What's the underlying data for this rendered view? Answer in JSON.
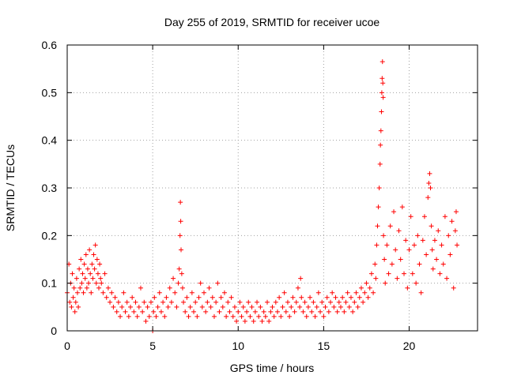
{
  "chart_data": {
    "type": "scatter",
    "title": "Day 255 of 2019, SRMTID for receiver ucoe",
    "xlabel": "GPS time / hours",
    "ylabel": "SRMTID / TECUs",
    "xlim": [
      0,
      24
    ],
    "ylim": [
      0,
      0.6
    ],
    "xticks": [
      0,
      5,
      10,
      15,
      20
    ],
    "yticks": [
      0,
      0.1,
      0.2,
      0.3,
      0.4,
      0.5,
      0.6
    ],
    "xtick_labels": [
      "0",
      "5",
      "10",
      "15",
      "20"
    ],
    "ytick_labels": [
      "0",
      "0.1",
      "0.2",
      "0.3",
      "0.4",
      "0.5",
      "0.6"
    ],
    "grid": true,
    "marker": "+",
    "color": "#ff0000",
    "series": [
      {
        "name": "SRMTID",
        "points": [
          [
            0.0,
            0.08
          ],
          [
            0.1,
            0.14
          ],
          [
            0.15,
            0.06
          ],
          [
            0.2,
            0.1
          ],
          [
            0.25,
            0.05
          ],
          [
            0.3,
            0.12
          ],
          [
            0.35,
            0.07
          ],
          [
            0.4,
            0.09
          ],
          [
            0.45,
            0.04
          ],
          [
            0.5,
            0.06
          ],
          [
            0.55,
            0.11
          ],
          [
            0.6,
            0.08
          ],
          [
            0.65,
            0.05
          ],
          [
            0.7,
            0.13
          ],
          [
            0.75,
            0.09
          ],
          [
            0.8,
            0.15
          ],
          [
            0.85,
            0.1
          ],
          [
            0.9,
            0.12
          ],
          [
            0.95,
            0.08
          ],
          [
            1.0,
            0.14
          ],
          [
            1.05,
            0.11
          ],
          [
            1.1,
            0.16
          ],
          [
            1.15,
            0.09
          ],
          [
            1.2,
            0.13
          ],
          [
            1.25,
            0.1
          ],
          [
            1.3,
            0.17
          ],
          [
            1.35,
            0.12
          ],
          [
            1.4,
            0.08
          ],
          [
            1.45,
            0.14
          ],
          [
            1.5,
            0.11
          ],
          [
            1.55,
            0.16
          ],
          [
            1.6,
            0.13
          ],
          [
            1.65,
            0.18
          ],
          [
            1.7,
            0.1
          ],
          [
            1.75,
            0.15
          ],
          [
            1.8,
            0.12
          ],
          [
            1.85,
            0.09
          ],
          [
            1.9,
            0.14
          ],
          [
            1.95,
            0.11
          ],
          [
            2.0,
            0.1
          ],
          [
            2.1,
            0.08
          ],
          [
            2.2,
            0.12
          ],
          [
            2.3,
            0.07
          ],
          [
            2.4,
            0.09
          ],
          [
            2.5,
            0.06
          ],
          [
            2.6,
            0.08
          ],
          [
            2.7,
            0.05
          ],
          [
            2.8,
            0.07
          ],
          [
            2.9,
            0.04
          ],
          [
            3.0,
            0.06
          ],
          [
            3.1,
            0.03
          ],
          [
            3.2,
            0.05
          ],
          [
            3.3,
            0.08
          ],
          [
            3.4,
            0.04
          ],
          [
            3.5,
            0.06
          ],
          [
            3.6,
            0.03
          ],
          [
            3.7,
            0.05
          ],
          [
            3.8,
            0.07
          ],
          [
            3.9,
            0.04
          ],
          [
            4.0,
            0.06
          ],
          [
            4.1,
            0.03
          ],
          [
            4.2,
            0.05
          ],
          [
            4.3,
            0.09
          ],
          [
            4.4,
            0.04
          ],
          [
            4.5,
            0.06
          ],
          [
            4.6,
            0.02
          ],
          [
            4.7,
            0.05
          ],
          [
            4.8,
            0.03
          ],
          [
            4.9,
            0.06
          ],
          [
            5.0,
            0.0
          ],
          [
            5.05,
            0.04
          ],
          [
            5.1,
            0.07
          ],
          [
            5.2,
            0.03
          ],
          [
            5.3,
            0.05
          ],
          [
            5.4,
            0.08
          ],
          [
            5.5,
            0.04
          ],
          [
            5.6,
            0.06
          ],
          [
            5.7,
            0.03
          ],
          [
            5.8,
            0.07
          ],
          [
            5.9,
            0.05
          ],
          [
            6.0,
            0.09
          ],
          [
            6.1,
            0.06
          ],
          [
            6.2,
            0.11
          ],
          [
            6.3,
            0.08
          ],
          [
            6.4,
            0.05
          ],
          [
            6.5,
            0.1
          ],
          [
            6.55,
            0.13
          ],
          [
            6.6,
            0.2
          ],
          [
            6.62,
            0.27
          ],
          [
            6.64,
            0.23
          ],
          [
            6.66,
            0.17
          ],
          [
            6.7,
            0.12
          ],
          [
            6.75,
            0.09
          ],
          [
            6.8,
            0.06
          ],
          [
            6.9,
            0.04
          ],
          [
            7.0,
            0.07
          ],
          [
            7.1,
            0.03
          ],
          [
            7.2,
            0.05
          ],
          [
            7.3,
            0.08
          ],
          [
            7.4,
            0.04
          ],
          [
            7.5,
            0.06
          ],
          [
            7.6,
            0.03
          ],
          [
            7.7,
            0.07
          ],
          [
            7.8,
            0.1
          ],
          [
            7.9,
            0.05
          ],
          [
            8.0,
            0.08
          ],
          [
            8.1,
            0.04
          ],
          [
            8.2,
            0.06
          ],
          [
            8.3,
            0.09
          ],
          [
            8.4,
            0.05
          ],
          [
            8.5,
            0.07
          ],
          [
            8.6,
            0.03
          ],
          [
            8.7,
            0.06
          ],
          [
            8.8,
            0.1
          ],
          [
            8.9,
            0.04
          ],
          [
            9.0,
            0.07
          ],
          [
            9.1,
            0.05
          ],
          [
            9.2,
            0.08
          ],
          [
            9.3,
            0.03
          ],
          [
            9.4,
            0.06
          ],
          [
            9.5,
            0.04
          ],
          [
            9.6,
            0.07
          ],
          [
            9.7,
            0.03
          ],
          [
            9.8,
            0.05
          ],
          [
            9.9,
            0.02
          ],
          [
            10.0,
            0.04
          ],
          [
            10.1,
            0.06
          ],
          [
            10.2,
            0.03
          ],
          [
            10.3,
            0.05
          ],
          [
            10.4,
            0.02
          ],
          [
            10.5,
            0.04
          ],
          [
            10.6,
            0.06
          ],
          [
            10.7,
            0.03
          ],
          [
            10.8,
            0.05
          ],
          [
            10.9,
            0.02
          ],
          [
            11.0,
            0.04
          ],
          [
            11.1,
            0.06
          ],
          [
            11.2,
            0.03
          ],
          [
            11.3,
            0.05
          ],
          [
            11.4,
            0.02
          ],
          [
            11.5,
            0.04
          ],
          [
            11.6,
            0.03
          ],
          [
            11.7,
            0.06
          ],
          [
            11.8,
            0.02
          ],
          [
            11.9,
            0.04
          ],
          [
            12.0,
            0.05
          ],
          [
            12.1,
            0.03
          ],
          [
            12.2,
            0.06
          ],
          [
            12.3,
            0.04
          ],
          [
            12.4,
            0.07
          ],
          [
            12.5,
            0.03
          ],
          [
            12.6,
            0.05
          ],
          [
            12.7,
            0.08
          ],
          [
            12.8,
            0.04
          ],
          [
            12.9,
            0.06
          ],
          [
            13.0,
            0.03
          ],
          [
            13.1,
            0.05
          ],
          [
            13.2,
            0.07
          ],
          [
            13.3,
            0.04
          ],
          [
            13.4,
            0.06
          ],
          [
            13.5,
            0.09
          ],
          [
            13.6,
            0.05
          ],
          [
            13.65,
            0.11
          ],
          [
            13.7,
            0.07
          ],
          [
            13.8,
            0.04
          ],
          [
            13.9,
            0.06
          ],
          [
            14.0,
            0.03
          ],
          [
            14.1,
            0.05
          ],
          [
            14.2,
            0.07
          ],
          [
            14.3,
            0.04
          ],
          [
            14.4,
            0.06
          ],
          [
            14.5,
            0.03
          ],
          [
            14.6,
            0.05
          ],
          [
            14.7,
            0.08
          ],
          [
            14.8,
            0.04
          ],
          [
            14.9,
            0.06
          ],
          [
            15.0,
            0.03
          ],
          [
            15.1,
            0.05
          ],
          [
            15.2,
            0.07
          ],
          [
            15.3,
            0.04
          ],
          [
            15.4,
            0.06
          ],
          [
            15.5,
            0.08
          ],
          [
            15.6,
            0.05
          ],
          [
            15.7,
            0.07
          ],
          [
            15.8,
            0.04
          ],
          [
            15.9,
            0.06
          ],
          [
            16.0,
            0.05
          ],
          [
            16.1,
            0.07
          ],
          [
            16.2,
            0.04
          ],
          [
            16.3,
            0.06
          ],
          [
            16.4,
            0.08
          ],
          [
            16.5,
            0.05
          ],
          [
            16.6,
            0.07
          ],
          [
            16.7,
            0.04
          ],
          [
            16.8,
            0.06
          ],
          [
            16.9,
            0.08
          ],
          [
            17.0,
            0.05
          ],
          [
            17.1,
            0.07
          ],
          [
            17.2,
            0.09
          ],
          [
            17.3,
            0.06
          ],
          [
            17.4,
            0.08
          ],
          [
            17.5,
            0.1
          ],
          [
            17.6,
            0.07
          ],
          [
            17.7,
            0.09
          ],
          [
            17.8,
            0.12
          ],
          [
            17.9,
            0.08
          ],
          [
            18.0,
            0.14
          ],
          [
            18.05,
            0.11
          ],
          [
            18.1,
            0.18
          ],
          [
            18.15,
            0.22
          ],
          [
            18.2,
            0.26
          ],
          [
            18.25,
            0.3
          ],
          [
            18.3,
            0.35
          ],
          [
            18.32,
            0.39
          ],
          [
            18.35,
            0.42
          ],
          [
            18.38,
            0.46
          ],
          [
            18.4,
            0.5
          ],
          [
            18.42,
            0.53
          ],
          [
            18.44,
            0.565
          ],
          [
            18.46,
            0.52
          ],
          [
            18.48,
            0.49
          ],
          [
            18.5,
            0.2
          ],
          [
            18.55,
            0.15
          ],
          [
            18.6,
            0.1
          ],
          [
            18.7,
            0.18
          ],
          [
            18.8,
            0.12
          ],
          [
            18.9,
            0.22
          ],
          [
            19.0,
            0.14
          ],
          [
            19.1,
            0.25
          ],
          [
            19.2,
            0.17
          ],
          [
            19.3,
            0.11
          ],
          [
            19.4,
            0.21
          ],
          [
            19.5,
            0.15
          ],
          [
            19.6,
            0.26
          ],
          [
            19.7,
            0.12
          ],
          [
            19.8,
            0.19
          ],
          [
            19.9,
            0.09
          ],
          [
            20.0,
            0.17
          ],
          [
            20.1,
            0.24
          ],
          [
            20.2,
            0.12
          ],
          [
            20.3,
            0.18
          ],
          [
            20.4,
            0.1
          ],
          [
            20.5,
            0.2
          ],
          [
            20.6,
            0.14
          ],
          [
            20.7,
            0.08
          ],
          [
            20.8,
            0.19
          ],
          [
            20.9,
            0.24
          ],
          [
            21.0,
            0.16
          ],
          [
            21.1,
            0.28
          ],
          [
            21.15,
            0.31
          ],
          [
            21.2,
            0.33
          ],
          [
            21.25,
            0.3
          ],
          [
            21.3,
            0.22
          ],
          [
            21.35,
            0.17
          ],
          [
            21.4,
            0.13
          ],
          [
            21.5,
            0.19
          ],
          [
            21.6,
            0.15
          ],
          [
            21.7,
            0.21
          ],
          [
            21.8,
            0.12
          ],
          [
            21.9,
            0.18
          ],
          [
            22.0,
            0.14
          ],
          [
            22.1,
            0.24
          ],
          [
            22.2,
            0.11
          ],
          [
            22.3,
            0.2
          ],
          [
            22.4,
            0.16
          ],
          [
            22.5,
            0.23
          ],
          [
            22.6,
            0.09
          ],
          [
            22.7,
            0.21
          ],
          [
            22.75,
            0.25
          ],
          [
            22.8,
            0.18
          ]
        ]
      }
    ]
  }
}
